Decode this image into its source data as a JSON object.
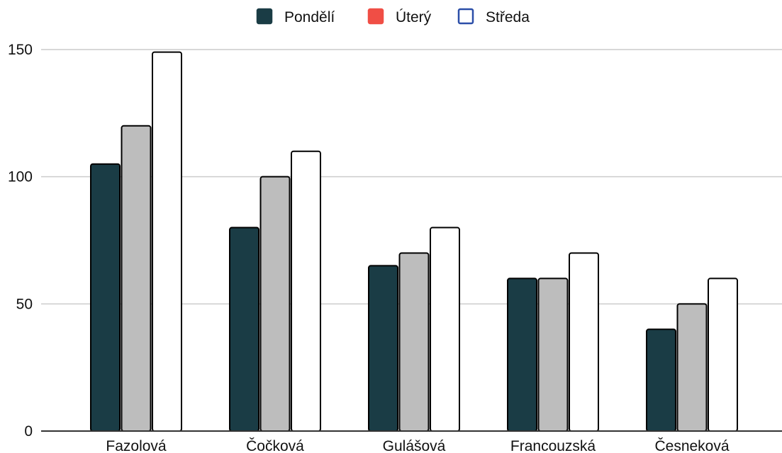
{
  "chart_data": {
    "type": "bar",
    "categories": [
      "Fazolová",
      "Čočková",
      "Gulášová",
      "Francouzská",
      "Česneková"
    ],
    "series": [
      {
        "name": "Pondělí",
        "values": [
          105,
          80,
          65,
          60,
          40
        ]
      },
      {
        "name": "Úterý",
        "values": [
          120,
          100,
          70,
          60,
          50
        ]
      },
      {
        "name": "Středa",
        "values": [
          149,
          110,
          80,
          70,
          60
        ]
      }
    ],
    "bar_colors": [
      "#1a3c45",
      "#bdbdbd",
      "#ffffff"
    ],
    "legend_swatch_colors": [
      "#1a3c45",
      "#f04e45",
      "#ffffff"
    ],
    "legend_swatch_border_colors": [
      "#1a3c45",
      "#f04e45",
      "#2b4ea8"
    ],
    "bar_stroke_color": "#000000",
    "gridline_color": "#cccccc",
    "yticks": [
      0,
      50,
      100,
      150
    ],
    "ylim": [
      0,
      150
    ],
    "grid": true,
    "legend_position": "top-center",
    "title": "",
    "xlabel": "",
    "ylabel": ""
  }
}
